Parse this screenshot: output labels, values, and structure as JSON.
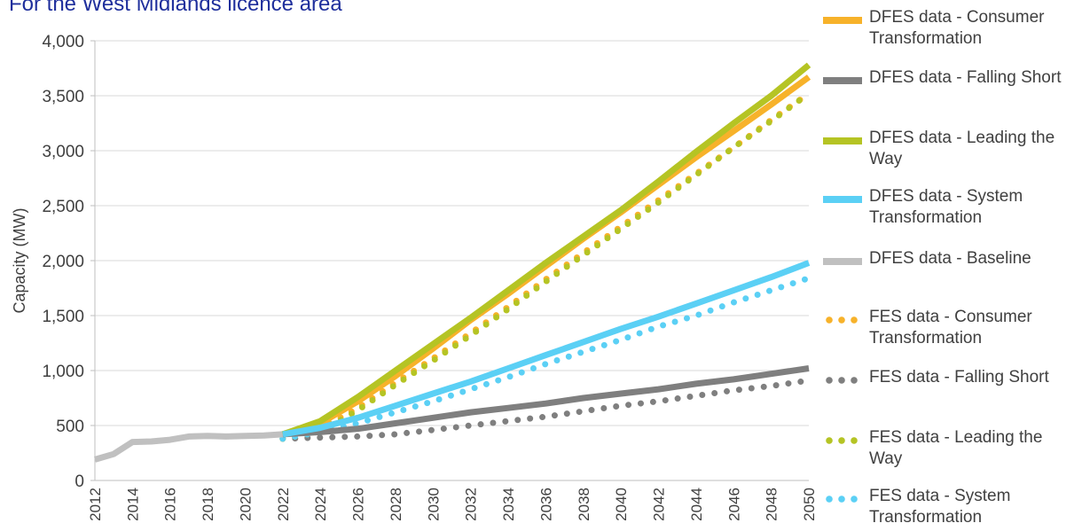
{
  "title": "For the West Midlands licence area",
  "colors": {
    "consumer": "#f7b22a",
    "falling": "#7f7f7f",
    "leading": "#b5c424",
    "system": "#5bd0f5",
    "baseline": "#c0c0c0",
    "grid": "#d9d9d9",
    "axis_text": "#404040"
  },
  "legend": [
    {
      "label": "DFES data - Consumer Transformation",
      "style": "solid",
      "color": "#f7b22a"
    },
    {
      "label": "DFES data - Falling Short",
      "style": "solid",
      "color": "#7f7f7f"
    },
    {
      "label": "DFES data - Leading the Way",
      "style": "solid",
      "color": "#b5c424"
    },
    {
      "label": "DFES data - System Transformation",
      "style": "solid",
      "color": "#5bd0f5"
    },
    {
      "label": "DFES data - Baseline",
      "style": "solid",
      "color": "#c0c0c0"
    },
    {
      "label": "FES data - Consumer Transformation",
      "style": "dotted",
      "color": "#f7b22a"
    },
    {
      "label": "FES data - Falling Short",
      "style": "dotted",
      "color": "#7f7f7f"
    },
    {
      "label": "FES data - Leading the Way",
      "style": "dotted",
      "color": "#b5c424"
    },
    {
      "label": "FES data - System Transformation",
      "style": "dotted",
      "color": "#5bd0f5"
    }
  ],
  "chart_data": {
    "type": "line",
    "title": "For the West Midlands licence area",
    "xlabel": "",
    "ylabel": "Capacity (MW)",
    "xlim": [
      2012,
      2050
    ],
    "ylim": [
      0,
      4000
    ],
    "grid": true,
    "legend_position": "right",
    "x_ticks": [
      2012,
      2014,
      2016,
      2018,
      2020,
      2022,
      2024,
      2026,
      2028,
      2030,
      2032,
      2034,
      2036,
      2038,
      2040,
      2042,
      2044,
      2046,
      2048,
      2050
    ],
    "y_ticks": [
      0,
      500,
      1000,
      1500,
      2000,
      2500,
      3000,
      3500,
      4000
    ],
    "y_tick_labels": [
      "0",
      "500",
      "1,000",
      "1,500",
      "2,000",
      "2,500",
      "3,000",
      "3,500",
      "4,000"
    ],
    "series": [
      {
        "name": "DFES data - Baseline",
        "style": "solid",
        "color": "#c0c0c0",
        "x": [
          2012,
          2013,
          2014,
          2015,
          2016,
          2017,
          2018,
          2019,
          2020,
          2021,
          2022
        ],
        "y": [
          190,
          240,
          350,
          355,
          370,
          400,
          405,
          400,
          405,
          410,
          420
        ]
      },
      {
        "name": "DFES data - Consumer Transformation",
        "style": "solid",
        "color": "#f7b22a",
        "x": [
          2022,
          2024,
          2026,
          2028,
          2030,
          2032,
          2034,
          2036,
          2038,
          2040,
          2042,
          2044,
          2046,
          2048,
          2050
        ],
        "y": [
          420,
          520,
          720,
          950,
          1200,
          1460,
          1700,
          1950,
          2200,
          2440,
          2690,
          2940,
          3180,
          3420,
          3670
        ]
      },
      {
        "name": "DFES data - Falling Short",
        "style": "solid",
        "color": "#7f7f7f",
        "x": [
          2022,
          2024,
          2026,
          2028,
          2030,
          2032,
          2034,
          2036,
          2038,
          2040,
          2042,
          2044,
          2046,
          2048,
          2050
        ],
        "y": [
          420,
          440,
          470,
          520,
          570,
          620,
          660,
          700,
          750,
          790,
          830,
          880,
          920,
          970,
          1020
        ]
      },
      {
        "name": "DFES data - Leading the Way",
        "style": "solid",
        "color": "#b5c424",
        "x": [
          2022,
          2024,
          2026,
          2028,
          2030,
          2032,
          2034,
          2036,
          2038,
          2040,
          2042,
          2044,
          2046,
          2048,
          2050
        ],
        "y": [
          420,
          540,
          760,
          1000,
          1240,
          1480,
          1730,
          1980,
          2220,
          2460,
          2720,
          2990,
          3250,
          3500,
          3780
        ]
      },
      {
        "name": "DFES data - System Transformation",
        "style": "solid",
        "color": "#5bd0f5",
        "x": [
          2022,
          2024,
          2026,
          2028,
          2030,
          2032,
          2034,
          2036,
          2038,
          2040,
          2042,
          2044,
          2046,
          2048,
          2050
        ],
        "y": [
          420,
          480,
          570,
          680,
          790,
          900,
          1020,
          1140,
          1260,
          1380,
          1490,
          1610,
          1730,
          1850,
          1980
        ]
      },
      {
        "name": "FES data - Consumer Transformation",
        "style": "dotted",
        "color": "#f7b22a",
        "x": [
          2022,
          2024,
          2026,
          2028,
          2030,
          2032,
          2034,
          2036,
          2038,
          2040,
          2042,
          2044,
          2046,
          2048,
          2050
        ],
        "y": [
          380,
          470,
          660,
          890,
          1110,
          1340,
          1580,
          1830,
          2070,
          2310,
          2550,
          2790,
          3030,
          3280,
          3520
        ]
      },
      {
        "name": "FES data - Falling Short",
        "style": "dotted",
        "color": "#7f7f7f",
        "x": [
          2022,
          2024,
          2026,
          2028,
          2030,
          2032,
          2034,
          2036,
          2038,
          2040,
          2042,
          2044,
          2046,
          2048,
          2050
        ],
        "y": [
          380,
          390,
          400,
          420,
          460,
          500,
          540,
          580,
          630,
          680,
          720,
          770,
          820,
          860,
          910
        ]
      },
      {
        "name": "FES data - Leading the Way",
        "style": "dotted",
        "color": "#b5c424",
        "x": [
          2022,
          2024,
          2026,
          2028,
          2030,
          2032,
          2034,
          2036,
          2038,
          2040,
          2042,
          2044,
          2046,
          2048,
          2050
        ],
        "y": [
          380,
          440,
          640,
          870,
          1090,
          1320,
          1560,
          1810,
          2050,
          2290,
          2530,
          2780,
          3030,
          3270,
          3520
        ]
      },
      {
        "name": "FES data - System Transformation",
        "style": "dotted",
        "color": "#5bd0f5",
        "x": [
          2022,
          2024,
          2026,
          2028,
          2030,
          2032,
          2034,
          2036,
          2038,
          2040,
          2042,
          2044,
          2046,
          2048,
          2050
        ],
        "y": [
          380,
          440,
          520,
          620,
          720,
          830,
          940,
          1060,
          1170,
          1280,
          1400,
          1500,
          1620,
          1730,
          1840
        ]
      }
    ]
  }
}
